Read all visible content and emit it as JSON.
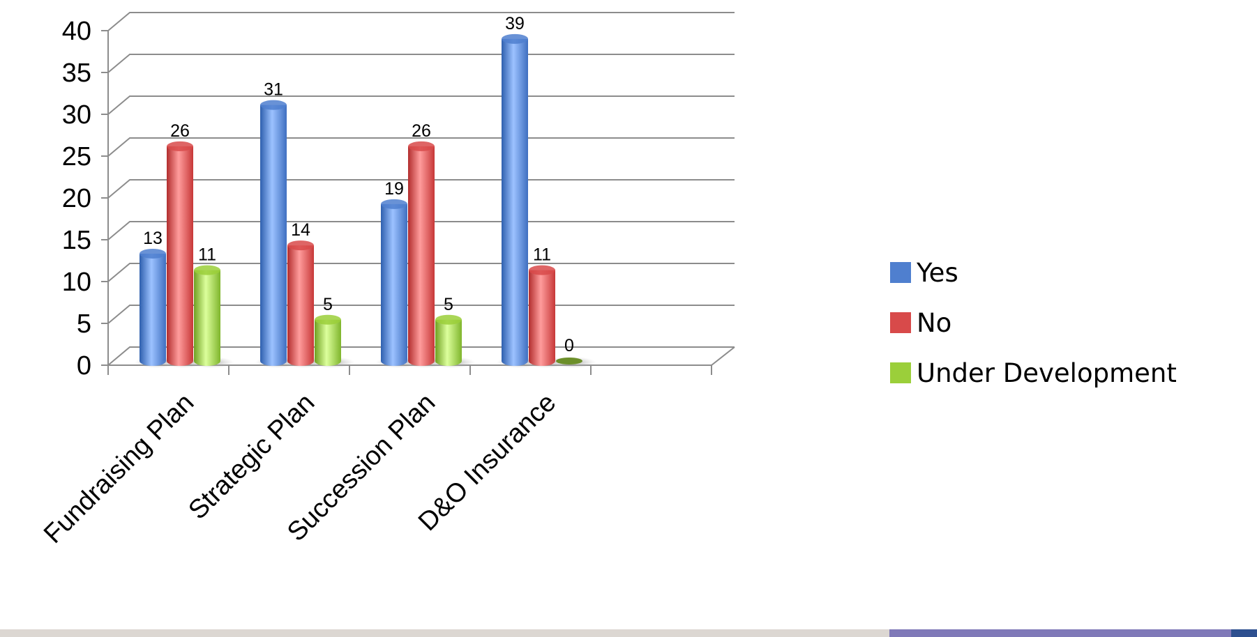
{
  "chart_data": {
    "type": "bar",
    "categories": [
      "Fundraising Plan",
      "Strategic Plan",
      "Succession Plan",
      "D&O Insurance"
    ],
    "series": [
      {
        "name": "Yes",
        "values": [
          13,
          31,
          19,
          39
        ],
        "color": "#4f7fcf"
      },
      {
        "name": "No",
        "values": [
          26,
          14,
          26,
          11
        ],
        "color": "#d84a4a"
      },
      {
        "name": "Under Development",
        "values": [
          11,
          5,
          5,
          0
        ],
        "color": "#9bcf3a"
      }
    ],
    "ylim": [
      0,
      40
    ],
    "yticks": [
      "0",
      "5",
      "10",
      "15",
      "20",
      "25",
      "30",
      "35",
      "40"
    ],
    "grid": true,
    "legend_position": "right"
  }
}
